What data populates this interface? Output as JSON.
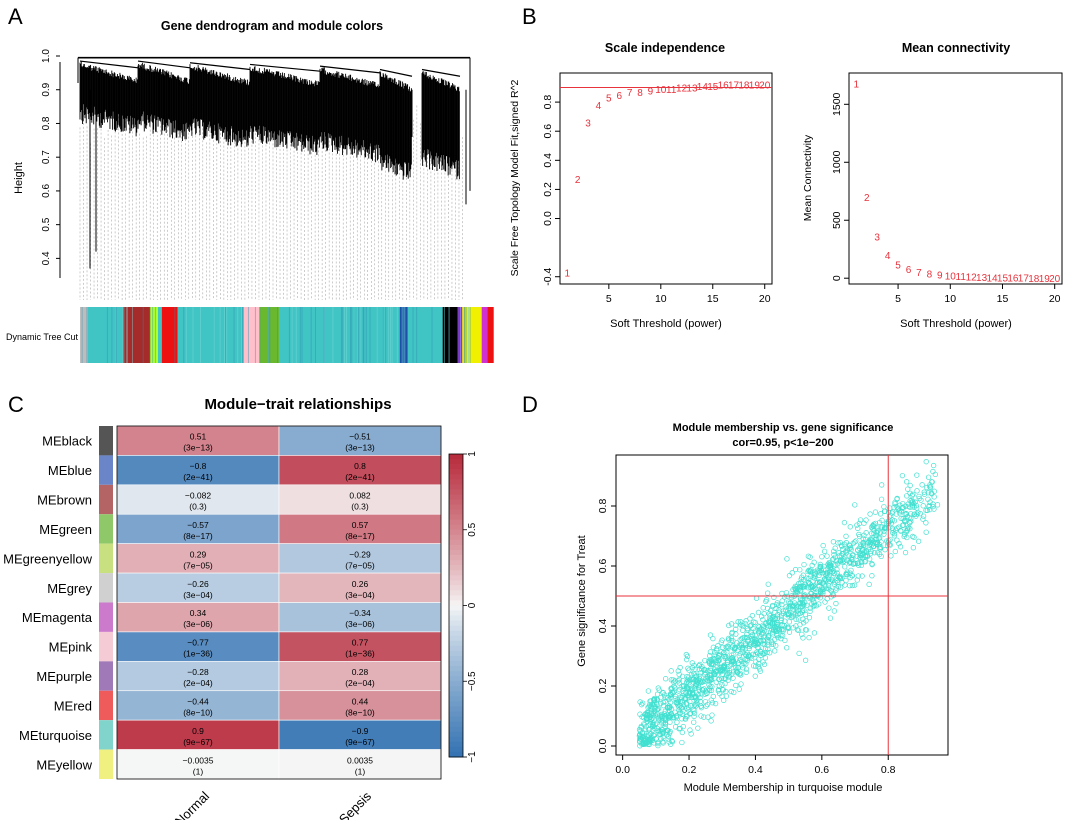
{
  "panels": {
    "A": "A",
    "B": "B",
    "C": "C",
    "D": "D"
  },
  "colors": {
    "red_line": "#e8323c",
    "point_red": "#e8323c",
    "turquoise": "#40e0d0",
    "neg": "#2166ac",
    "pos": "#b2182b"
  },
  "chart_data": [
    {
      "id": "A",
      "type": "dendrogram",
      "title": "Gene dendrogram and module colors",
      "ylabel": "Height",
      "ylim": [
        0.33,
        1.0
      ],
      "yticks": [
        "0.4",
        "0.5",
        "0.6",
        "0.7",
        "0.8",
        "0.9",
        "1.0"
      ],
      "ytick_values": [
        0.4,
        0.5,
        0.6,
        0.7,
        0.8,
        0.9,
        1.0
      ],
      "color_bar_label": "Dynamic Tree Cut",
      "module_order": [
        "grey",
        "turquoise",
        "brown",
        "greenyellow",
        "turquoise",
        "red",
        "turquoise",
        "pink",
        "green",
        "turquoise",
        "blue",
        "turquoise",
        "black",
        "purple",
        "yellow",
        "magenta",
        "red"
      ],
      "module_fractions": [
        0.02,
        0.09,
        0.07,
        0.02,
        0.01,
        0.04,
        0.17,
        0.04,
        0.05,
        0.31,
        0.02,
        0.09,
        0.04,
        0.01,
        0.05,
        0.015,
        0.015
      ],
      "module_hex": {
        "grey": "#bdbdbd",
        "turquoise": "#40c4c4",
        "brown": "#a52a2a",
        "greenyellow": "#adff2f",
        "red": "#ee1111",
        "pink": "#ffc0cb",
        "green": "#6ab82e",
        "blue": "#1f4ea8",
        "black": "#000000",
        "purple": "#a020f0",
        "yellow": "#f0f000",
        "magenta": "#d030d0"
      }
    },
    {
      "id": "B1",
      "type": "scatter",
      "title": "Scale independence",
      "xlabel": "Soft Threshold (power)",
      "ylabel": "Scale Free Topology Model Fit,signed R^2",
      "xlim": [
        0.3,
        20.7
      ],
      "ylim": [
        -0.45,
        1.0
      ],
      "xticks": [
        5,
        10,
        15,
        20
      ],
      "yticks": [
        -0.4,
        0.0,
        0.2,
        0.4,
        0.6,
        0.8
      ],
      "ytick_labels": [
        "-0.4",
        "0.0",
        "0.2",
        "0.4",
        "0.6",
        "0.8"
      ],
      "hline": 0.9,
      "x": [
        1,
        2,
        3,
        4,
        5,
        6,
        7,
        8,
        9,
        10,
        11,
        12,
        13,
        14,
        15,
        16,
        17,
        18,
        19,
        20
      ],
      "y": [
        -0.37,
        0.27,
        0.66,
        0.78,
        0.83,
        0.85,
        0.87,
        0.87,
        0.88,
        0.89,
        0.89,
        0.9,
        0.9,
        0.91,
        0.91,
        0.92,
        0.92,
        0.92,
        0.92,
        0.92
      ],
      "labels": [
        "1",
        "2",
        "3",
        "4",
        "5",
        "6",
        "7",
        "8",
        "9",
        "10",
        "11",
        "12",
        "13",
        "14",
        "15",
        "16",
        "17",
        "18",
        "19",
        "20"
      ]
    },
    {
      "id": "B2",
      "type": "scatter",
      "title": "Mean connectivity",
      "xlabel": "Soft Threshold (power)",
      "ylabel": "Mean Connectivity",
      "xlim": [
        0.3,
        20.7
      ],
      "ylim": [
        -50,
        1770
      ],
      "xticks": [
        5,
        10,
        15,
        20
      ],
      "yticks": [
        0,
        500,
        1000,
        1500
      ],
      "x": [
        1,
        2,
        3,
        4,
        5,
        6,
        7,
        8,
        9,
        10,
        11,
        12,
        13,
        14,
        15,
        16,
        17,
        18,
        19,
        20
      ],
      "y": [
        1680,
        700,
        360,
        200,
        120,
        80,
        55,
        40,
        30,
        22,
        17,
        13,
        10,
        8,
        6,
        5,
        4,
        3,
        3,
        2
      ],
      "labels": [
        "1",
        "2",
        "3",
        "4",
        "5",
        "6",
        "7",
        "8",
        "9",
        "10",
        "11",
        "12",
        "13",
        "14",
        "15",
        "16",
        "17",
        "18",
        "19",
        "20"
      ]
    },
    {
      "id": "C",
      "type": "heatmap",
      "title": "Module−trait relationships",
      "columns": [
        "Normal",
        "Sepsis"
      ],
      "rows": [
        "MEblack",
        "MEblue",
        "MEbrown",
        "MEgreen",
        "MEgreenyellow",
        "MEgrey",
        "MEmagenta",
        "MEpink",
        "MEpurple",
        "MEred",
        "MEturquoise",
        "MEyellow"
      ],
      "row_colors": [
        "#555555",
        "#6a85c8",
        "#b46464",
        "#8ec868",
        "#c8e080",
        "#d0d0d0",
        "#cc7acc",
        "#f5ccd6",
        "#a07ab8",
        "#ef5a5a",
        "#80d4cc",
        "#f0f080"
      ],
      "values": [
        [
          0.51,
          -0.51
        ],
        [
          -0.8,
          0.8
        ],
        [
          -0.082,
          0.082
        ],
        [
          -0.57,
          0.57
        ],
        [
          0.29,
          -0.29
        ],
        [
          -0.26,
          0.26
        ],
        [
          0.34,
          -0.34
        ],
        [
          -0.77,
          0.77
        ],
        [
          -0.28,
          0.28
        ],
        [
          -0.44,
          0.44
        ],
        [
          0.9,
          -0.9
        ],
        [
          -0.0035,
          0.0035
        ]
      ],
      "value_labels": [
        [
          "0.51",
          "−0.51"
        ],
        [
          "−0.8",
          "0.8"
        ],
        [
          "−0.082",
          "0.082"
        ],
        [
          "−0.57",
          "0.57"
        ],
        [
          "0.29",
          "−0.29"
        ],
        [
          "−0.26",
          "0.26"
        ],
        [
          "0.34",
          "−0.34"
        ],
        [
          "−0.77",
          "0.77"
        ],
        [
          "−0.28",
          "0.28"
        ],
        [
          "−0.44",
          "0.44"
        ],
        [
          "0.9",
          "−0.9"
        ],
        [
          "−0.0035",
          "0.0035"
        ]
      ],
      "pvalues": [
        [
          "(3e−13)",
          "(3e−13)"
        ],
        [
          "(2e−41)",
          "(2e−41)"
        ],
        [
          "(0.3)",
          "(0.3)"
        ],
        [
          "(8e−17)",
          "(8e−17)"
        ],
        [
          "(7e−05)",
          "(7e−05)"
        ],
        [
          "(3e−04)",
          "(3e−04)"
        ],
        [
          "(3e−06)",
          "(3e−06)"
        ],
        [
          "(1e−36)",
          "(1e−36)"
        ],
        [
          "(2e−04)",
          "(2e−04)"
        ],
        [
          "(8e−10)",
          "(8e−10)"
        ],
        [
          "(9e−67)",
          "(9e−67)"
        ],
        [
          "(1)",
          "(1)"
        ]
      ],
      "scale_ticks": [
        "1",
        "0.5",
        "0",
        "−0.5",
        "−1"
      ],
      "scale_values": [
        1,
        0.5,
        0,
        -0.5,
        -1
      ]
    },
    {
      "id": "D",
      "type": "scatter",
      "title": "Module membership vs. gene significance",
      "subtitle": "cor=0.95, p<1e−200",
      "xlabel": "Module Membership in turquoise module",
      "ylabel": "Gene significance for  Treat",
      "xlim": [
        -0.02,
        0.98
      ],
      "ylim": [
        -0.03,
        0.97
      ],
      "xticks": [
        0.0,
        0.2,
        0.4,
        0.6,
        0.8
      ],
      "xtick_labels": [
        "0.0",
        "0.2",
        "0.4",
        "0.6",
        "0.8"
      ],
      "yticks": [
        0.0,
        0.2,
        0.4,
        0.6,
        0.8
      ],
      "ytick_labels": [
        "0.0",
        "0.2",
        "0.4",
        "0.6",
        "0.8"
      ],
      "vline": 0.8,
      "hline": 0.5,
      "n_points": 1500,
      "cor": 0.95,
      "trend": {
        "slope": 0.93,
        "intercept": -0.02
      }
    }
  ]
}
